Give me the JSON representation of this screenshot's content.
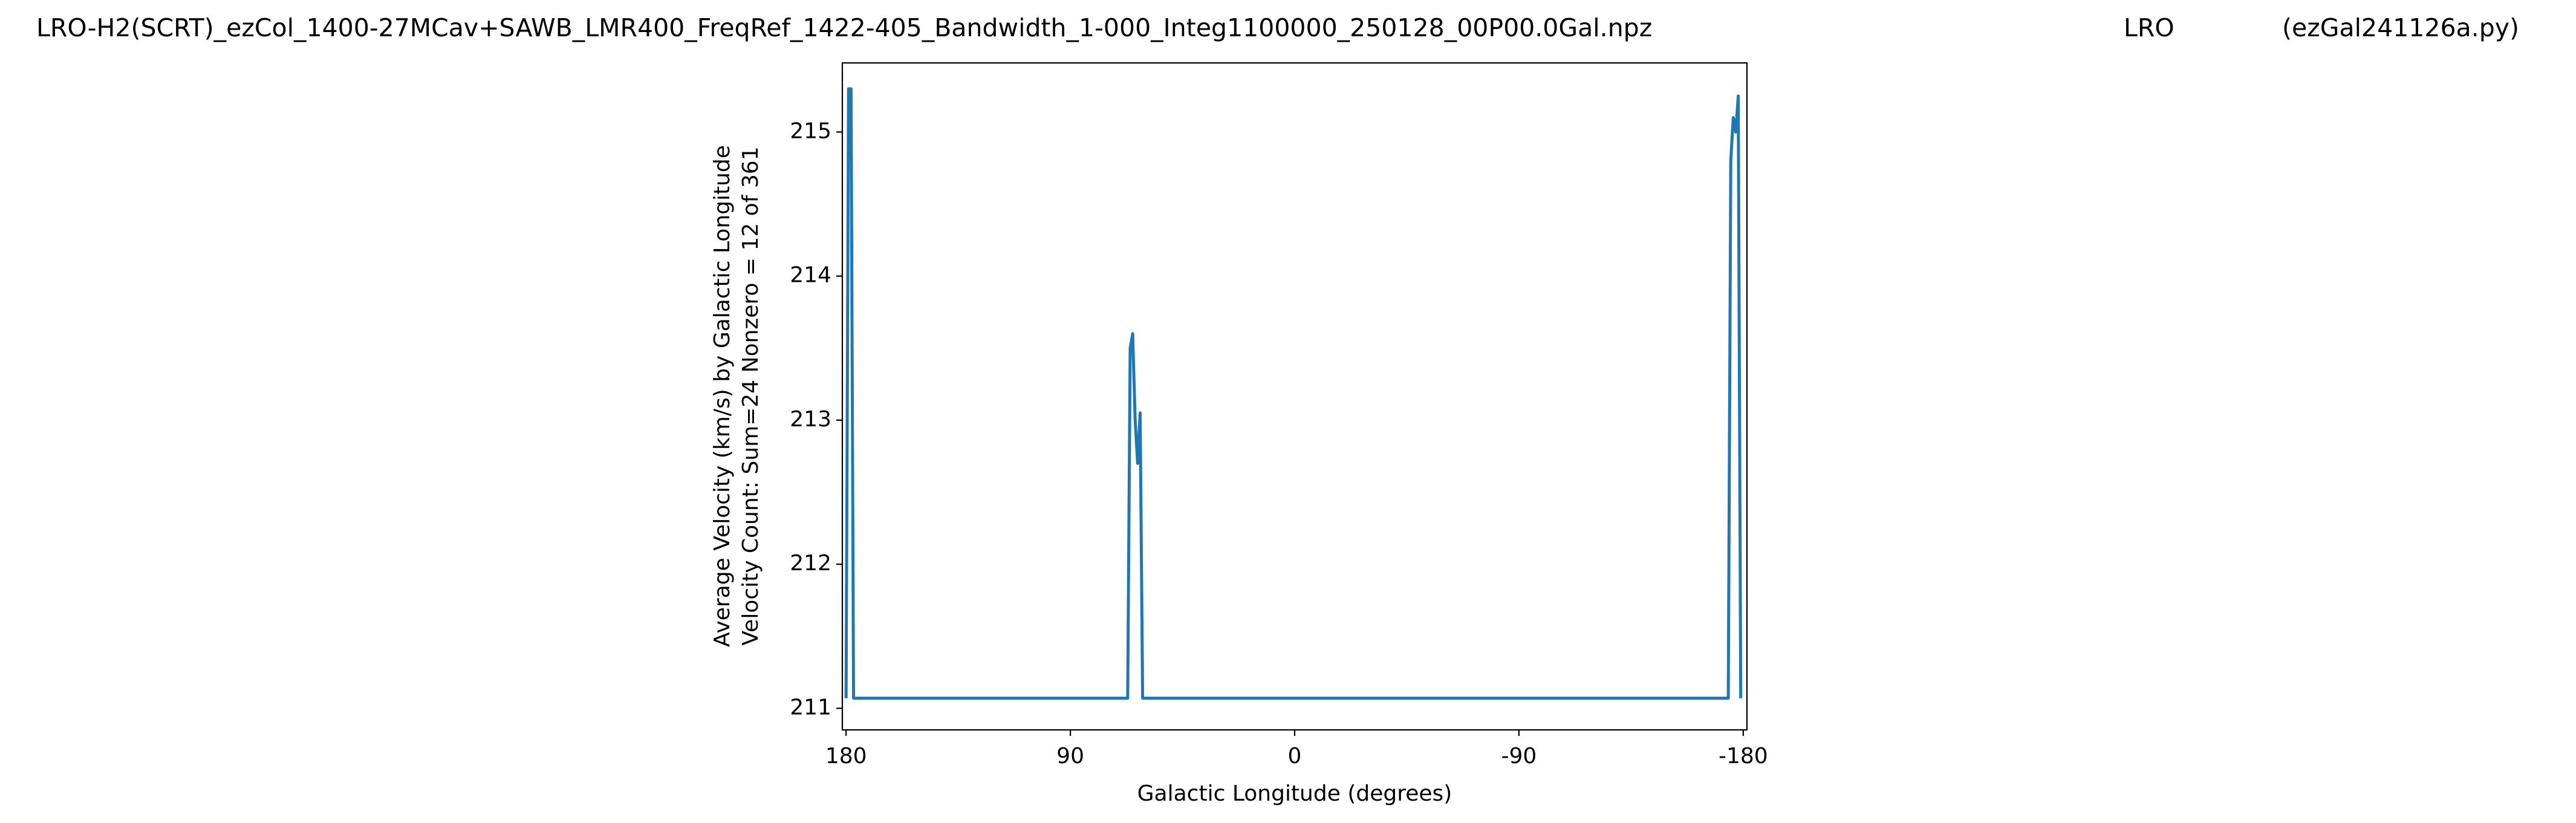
{
  "chart_data": {
    "type": "line",
    "title": "LRO-H2(SCRT)_ezCol_1400-27MCav+SAWB_LMR400_FreqRef_1422-405_Bandwidth_1-000_Integ1100000_250128_00P00.0Gal.npz",
    "title_station": "LRO",
    "title_program": "(ezGal241126a.py)",
    "xlabel": "Galactic Longitude (degrees)",
    "ylabel": [
      "Average Velocity (km/s) by Galactic Longitude",
      "Velocity Count: Sum=24 Nonzero = 12 of 361"
    ],
    "x": [
      180,
      179,
      178,
      177,
      67,
      66,
      65,
      64,
      63,
      62,
      61,
      -174,
      -175,
      -176,
      -177,
      -178,
      -179
    ],
    "values": [
      211.07,
      215.3,
      215.3,
      211.07,
      211.07,
      213.5,
      213.6,
      213.0,
      212.7,
      213.05,
      211.07,
      211.07,
      214.8,
      215.1,
      215.0,
      215.25,
      211.07
    ],
    "color": "#1f77b4",
    "xlim": [
      181.5,
      -181.5
    ],
    "xticks": [
      180,
      90,
      0,
      -90,
      -180
    ],
    "ylim": [
      210.85,
      215.48
    ],
    "yticks": [
      211,
      212,
      213,
      214,
      215
    ]
  }
}
